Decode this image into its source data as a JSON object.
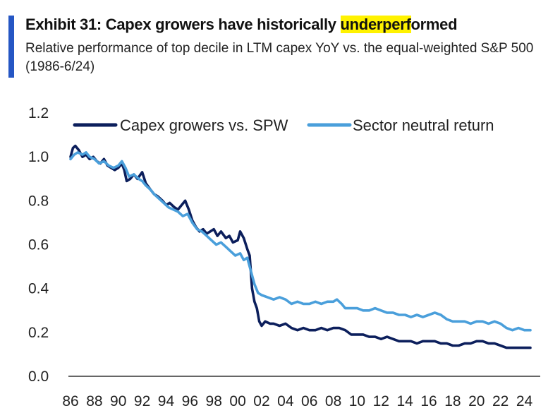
{
  "header": {
    "title_pre": "Exhibit 31: Capex growers have historically ",
    "title_highlight": "underperf",
    "title_post": "ormed",
    "subtitle": "Relative performance of top decile in LTM capex YoY vs. the equal-weighted S&P 500 (1986-6/24)"
  },
  "colors": {
    "accent": "#2556c4",
    "highlight": "#fff200"
  },
  "chart_data": {
    "type": "line",
    "x_tick_labels": [
      "86",
      "88",
      "90",
      "92",
      "94",
      "96",
      "98",
      "00",
      "02",
      "04",
      "06",
      "08",
      "10",
      "12",
      "14",
      "16",
      "18",
      "20",
      "22",
      "24"
    ],
    "y_tick_labels": [
      "0.0",
      "0.2",
      "0.4",
      "0.6",
      "0.8",
      "1.0",
      "1.2"
    ],
    "ylim": [
      0,
      1.2
    ],
    "xlim": [
      1986,
      2024.5
    ],
    "grid": false,
    "legend_position": "top",
    "series": [
      {
        "name": "Capex growers vs. SPW",
        "color": "#0c1f5c",
        "points": [
          [
            1986.0,
            1.0
          ],
          [
            1986.2,
            1.04
          ],
          [
            1986.4,
            1.05
          ],
          [
            1986.7,
            1.03
          ],
          [
            1987.0,
            1.0
          ],
          [
            1987.3,
            1.01
          ],
          [
            1987.6,
            0.99
          ],
          [
            1987.9,
            1.0
          ],
          [
            1988.2,
            0.98
          ],
          [
            1988.5,
            0.97
          ],
          [
            1988.8,
            0.99
          ],
          [
            1989.1,
            0.96
          ],
          [
            1989.4,
            0.95
          ],
          [
            1989.7,
            0.94
          ],
          [
            1990.0,
            0.95
          ],
          [
            1990.3,
            0.97
          ],
          [
            1990.5,
            0.94
          ],
          [
            1990.7,
            0.89
          ],
          [
            1991.0,
            0.9
          ],
          [
            1991.3,
            0.92
          ],
          [
            1991.6,
            0.9
          ],
          [
            1992.0,
            0.93
          ],
          [
            1992.3,
            0.88
          ],
          [
            1992.7,
            0.85
          ],
          [
            1993.0,
            0.83
          ],
          [
            1993.3,
            0.82
          ],
          [
            1993.7,
            0.8
          ],
          [
            1994.0,
            0.78
          ],
          [
            1994.3,
            0.79
          ],
          [
            1994.7,
            0.77
          ],
          [
            1995.0,
            0.76
          ],
          [
            1995.3,
            0.78
          ],
          [
            1995.6,
            0.8
          ],
          [
            1995.9,
            0.76
          ],
          [
            1996.2,
            0.71
          ],
          [
            1996.5,
            0.68
          ],
          [
            1996.8,
            0.66
          ],
          [
            1997.1,
            0.67
          ],
          [
            1997.4,
            0.65
          ],
          [
            1997.7,
            0.66
          ],
          [
            1998.0,
            0.67
          ],
          [
            1998.3,
            0.64
          ],
          [
            1998.6,
            0.66
          ],
          [
            1999.0,
            0.63
          ],
          [
            1999.3,
            0.64
          ],
          [
            1999.6,
            0.61
          ],
          [
            2000.0,
            0.62
          ],
          [
            2000.2,
            0.66
          ],
          [
            2000.5,
            0.63
          ],
          [
            2000.8,
            0.58
          ],
          [
            2001.0,
            0.55
          ],
          [
            2001.2,
            0.4
          ],
          [
            2001.4,
            0.34
          ],
          [
            2001.6,
            0.31
          ],
          [
            2001.8,
            0.25
          ],
          [
            2002.0,
            0.23
          ],
          [
            2002.3,
            0.25
          ],
          [
            2002.7,
            0.24
          ],
          [
            2003.0,
            0.24
          ],
          [
            2003.5,
            0.23
          ],
          [
            2004.0,
            0.24
          ],
          [
            2004.5,
            0.22
          ],
          [
            2005.0,
            0.21
          ],
          [
            2005.5,
            0.22
          ],
          [
            2006.0,
            0.21
          ],
          [
            2006.5,
            0.21
          ],
          [
            2007.0,
            0.22
          ],
          [
            2007.5,
            0.21
          ],
          [
            2008.0,
            0.22
          ],
          [
            2008.5,
            0.22
          ],
          [
            2009.0,
            0.21
          ],
          [
            2009.5,
            0.19
          ],
          [
            2010.0,
            0.19
          ],
          [
            2010.5,
            0.19
          ],
          [
            2011.0,
            0.18
          ],
          [
            2011.5,
            0.18
          ],
          [
            2012.0,
            0.17
          ],
          [
            2012.5,
            0.18
          ],
          [
            2013.0,
            0.17
          ],
          [
            2013.5,
            0.16
          ],
          [
            2014.0,
            0.16
          ],
          [
            2014.5,
            0.16
          ],
          [
            2015.0,
            0.15
          ],
          [
            2015.5,
            0.16
          ],
          [
            2016.0,
            0.16
          ],
          [
            2016.5,
            0.16
          ],
          [
            2017.0,
            0.15
          ],
          [
            2017.5,
            0.15
          ],
          [
            2018.0,
            0.14
          ],
          [
            2018.5,
            0.14
          ],
          [
            2019.0,
            0.15
          ],
          [
            2019.5,
            0.15
          ],
          [
            2020.0,
            0.16
          ],
          [
            2020.5,
            0.16
          ],
          [
            2021.0,
            0.15
          ],
          [
            2021.5,
            0.15
          ],
          [
            2022.0,
            0.14
          ],
          [
            2022.5,
            0.13
          ],
          [
            2023.0,
            0.13
          ],
          [
            2023.5,
            0.13
          ],
          [
            2024.0,
            0.13
          ],
          [
            2024.5,
            0.13
          ]
        ]
      },
      {
        "name": "Sector neutral return",
        "color": "#4a9fdb",
        "points": [
          [
            1986.0,
            0.99
          ],
          [
            1986.3,
            1.01
          ],
          [
            1986.6,
            1.02
          ],
          [
            1987.0,
            1.01
          ],
          [
            1987.3,
            1.02
          ],
          [
            1987.6,
            1.0
          ],
          [
            1988.0,
            0.99
          ],
          [
            1988.4,
            0.97
          ],
          [
            1988.8,
            0.98
          ],
          [
            1989.2,
            0.96
          ],
          [
            1989.6,
            0.95
          ],
          [
            1990.0,
            0.96
          ],
          [
            1990.3,
            0.98
          ],
          [
            1990.6,
            0.95
          ],
          [
            1990.9,
            0.91
          ],
          [
            1991.3,
            0.92
          ],
          [
            1991.7,
            0.9
          ],
          [
            1992.0,
            0.89
          ],
          [
            1992.3,
            0.87
          ],
          [
            1992.7,
            0.85
          ],
          [
            1993.0,
            0.83
          ],
          [
            1993.4,
            0.81
          ],
          [
            1993.8,
            0.79
          ],
          [
            1994.2,
            0.77
          ],
          [
            1994.6,
            0.76
          ],
          [
            1995.0,
            0.75
          ],
          [
            1995.4,
            0.73
          ],
          [
            1995.8,
            0.74
          ],
          [
            1996.2,
            0.7
          ],
          [
            1996.6,
            0.67
          ],
          [
            1997.0,
            0.66
          ],
          [
            1997.4,
            0.64
          ],
          [
            1997.8,
            0.62
          ],
          [
            1998.2,
            0.6
          ],
          [
            1998.6,
            0.61
          ],
          [
            1999.0,
            0.59
          ],
          [
            1999.4,
            0.57
          ],
          [
            1999.8,
            0.55
          ],
          [
            2000.2,
            0.56
          ],
          [
            2000.5,
            0.53
          ],
          [
            2000.8,
            0.54
          ],
          [
            2001.1,
            0.48
          ],
          [
            2001.4,
            0.42
          ],
          [
            2001.7,
            0.38
          ],
          [
            2002.0,
            0.37
          ],
          [
            2002.5,
            0.36
          ],
          [
            2003.0,
            0.35
          ],
          [
            2003.5,
            0.36
          ],
          [
            2004.0,
            0.35
          ],
          [
            2004.5,
            0.33
          ],
          [
            2005.0,
            0.34
          ],
          [
            2005.5,
            0.33
          ],
          [
            2006.0,
            0.33
          ],
          [
            2006.5,
            0.34
          ],
          [
            2007.0,
            0.33
          ],
          [
            2007.5,
            0.34
          ],
          [
            2008.0,
            0.34
          ],
          [
            2008.3,
            0.35
          ],
          [
            2008.7,
            0.33
          ],
          [
            2009.0,
            0.31
          ],
          [
            2009.5,
            0.31
          ],
          [
            2010.0,
            0.31
          ],
          [
            2010.5,
            0.3
          ],
          [
            2011.0,
            0.3
          ],
          [
            2011.5,
            0.31
          ],
          [
            2012.0,
            0.3
          ],
          [
            2012.5,
            0.29
          ],
          [
            2013.0,
            0.29
          ],
          [
            2013.5,
            0.28
          ],
          [
            2014.0,
            0.28
          ],
          [
            2014.5,
            0.27
          ],
          [
            2015.0,
            0.28
          ],
          [
            2015.5,
            0.27
          ],
          [
            2016.0,
            0.28
          ],
          [
            2016.5,
            0.29
          ],
          [
            2017.0,
            0.28
          ],
          [
            2017.5,
            0.26
          ],
          [
            2018.0,
            0.25
          ],
          [
            2018.5,
            0.25
          ],
          [
            2019.0,
            0.25
          ],
          [
            2019.5,
            0.24
          ],
          [
            2020.0,
            0.25
          ],
          [
            2020.5,
            0.25
          ],
          [
            2021.0,
            0.24
          ],
          [
            2021.5,
            0.25
          ],
          [
            2022.0,
            0.24
          ],
          [
            2022.5,
            0.22
          ],
          [
            2023.0,
            0.21
          ],
          [
            2023.5,
            0.22
          ],
          [
            2024.0,
            0.21
          ],
          [
            2024.5,
            0.21
          ]
        ]
      }
    ]
  }
}
